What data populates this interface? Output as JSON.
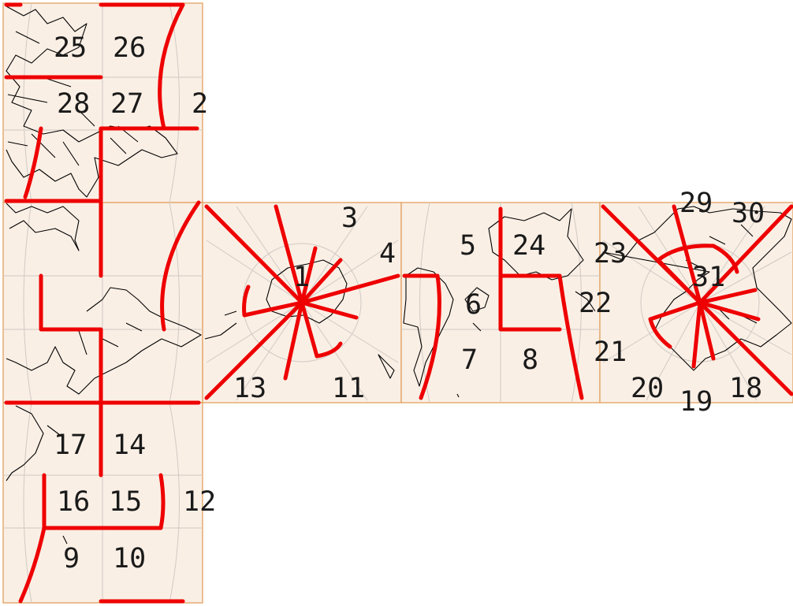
{
  "map": {
    "projection": "cube-net map with red region boundary lines",
    "colors": {
      "face_fill": "#faefe5",
      "face_border": "#e09a55",
      "boundary": "#ee0000",
      "coastline": "#000000",
      "graticule": "#cfcac4"
    },
    "labels": [
      "25",
      "26",
      "28",
      "27",
      "2",
      "3",
      "4",
      "1",
      "5",
      "24",
      "23",
      "6",
      "22",
      "7",
      "8",
      "21",
      "13",
      "11",
      "20",
      "19",
      "18",
      "29",
      "30",
      "31",
      "17",
      "14",
      "16",
      "15",
      "12",
      "9",
      "10"
    ]
  }
}
